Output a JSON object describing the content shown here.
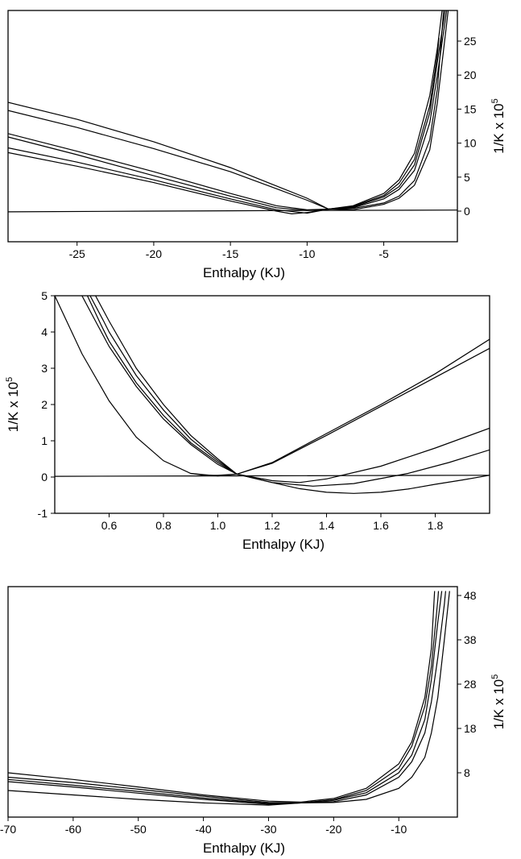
{
  "chart_data": [
    {
      "type": "line",
      "xlabel": "Enthalpy (KJ)",
      "ylabel": "1/K x 10",
      "ylabel_exponent": "5",
      "xlim": [
        -29.5,
        -0.2
      ],
      "ylim": [
        -4.5,
        29.5
      ],
      "xticks": [
        -25,
        -20,
        -15,
        -10,
        -5
      ],
      "yticks": [
        0,
        5,
        10,
        15,
        20,
        25
      ],
      "yaxis_side": "right",
      "series": [
        {
          "x": [
            -29.5,
            -25,
            -20,
            -15,
            -12,
            -10,
            -8.6,
            -7,
            -5,
            -4,
            -3,
            -2,
            -1.5,
            -1.2
          ],
          "y": [
            16,
            13.5,
            10.2,
            6.4,
            3.7,
            1.9,
            0.3,
            0.8,
            2.6,
            4.6,
            8.5,
            17,
            24,
            29.5
          ]
        },
        {
          "x": [
            -29.5,
            -25,
            -20,
            -15,
            -12,
            -10,
            -8.6,
            -7,
            -5,
            -4,
            -3,
            -2,
            -1.5,
            -1.4
          ],
          "y": [
            14.8,
            12.3,
            9.2,
            5.8,
            3.3,
            1.6,
            0.3,
            0.7,
            2.3,
            4.1,
            7.6,
            15.5,
            23,
            25.5
          ]
        },
        {
          "x": [
            -29.5,
            -25,
            -20,
            -15,
            -12,
            -10,
            -8.6,
            -7,
            -5,
            -4,
            -3,
            -2,
            -1.5,
            -1.0
          ],
          "y": [
            11.4,
            8.8,
            5.8,
            2.6,
            0.8,
            0.2,
            0.3,
            0.6,
            2.1,
            3.6,
            6.8,
            14.5,
            22,
            29.5
          ]
        },
        {
          "x": [
            -29.5,
            -25,
            -20,
            -15,
            -12,
            -10,
            -8.6,
            -7,
            -5,
            -4,
            -3,
            -2,
            -1.5,
            -0.9
          ],
          "y": [
            10.9,
            8.3,
            5.2,
            2.2,
            0.5,
            0.1,
            0.3,
            0.5,
            1.8,
            3.2,
            6.0,
            13.0,
            20,
            29.5
          ]
        },
        {
          "x": [
            -29.5,
            -25,
            -20,
            -15,
            -12,
            -10,
            -8.6,
            -7,
            -5,
            -4,
            -3,
            -2,
            -1.5,
            -1.1
          ],
          "y": [
            9.3,
            7.2,
            4.6,
            1.8,
            0.2,
            -0.3,
            0.3,
            0.4,
            1.2,
            2.2,
            4.5,
            10.5,
            18,
            29.5
          ]
        },
        {
          "x": [
            -29.5,
            -25,
            -20,
            -15,
            -12,
            -11,
            -10,
            -8.6,
            -7,
            -5,
            -4,
            -3,
            -2,
            -1.5,
            -0.8
          ],
          "y": [
            8.6,
            6.6,
            4.2,
            1.5,
            0.0,
            -0.4,
            -0.2,
            0.3,
            0.2,
            1.0,
            1.9,
            3.8,
            9.0,
            16,
            29.5
          ]
        },
        {
          "x": [
            -29.5,
            -20,
            -10,
            -0.2
          ],
          "y": [
            -0.1,
            0.0,
            0.1,
            0.15
          ]
        }
      ]
    },
    {
      "type": "line",
      "xlabel": "Enthalpy (KJ)",
      "ylabel": "1/K x 10",
      "ylabel_exponent": "5",
      "xlim": [
        0.4,
        2.0
      ],
      "ylim": [
        -1,
        5
      ],
      "xticks": [
        0.6,
        0.8,
        1.0,
        1.2,
        1.4,
        1.6,
        1.8
      ],
      "xtick_labels": [
        "0.6",
        "0.8",
        "1.0",
        "1.2",
        "1.4",
        "1.6",
        "1.8"
      ],
      "yticks": [
        -1,
        0,
        1,
        2,
        3,
        4,
        5
      ],
      "yaxis_side": "left",
      "series": [
        {
          "x": [
            0.4,
            0.45,
            0.5,
            0.6,
            0.7,
            0.8,
            0.9,
            1.0,
            1.07
          ],
          "y": [
            5.0,
            4.2,
            3.4,
            2.1,
            1.1,
            0.45,
            0.1,
            0.03,
            0.08
          ]
        },
        {
          "x": [
            0.5,
            0.55,
            0.6,
            0.7,
            0.8,
            0.9,
            1.0,
            1.07,
            1.2,
            1.4,
            1.6,
            1.8,
            2.0
          ],
          "y": [
            5.0,
            4.3,
            3.6,
            2.5,
            1.6,
            0.9,
            0.35,
            0.08,
            0.4,
            1.2,
            2.0,
            2.85,
            3.8
          ]
        },
        {
          "x": [
            0.52,
            0.57,
            0.6,
            0.7,
            0.8,
            0.9,
            1.0,
            1.07,
            1.2,
            1.4,
            1.6,
            1.8,
            2.0
          ],
          "y": [
            5.0,
            4.2,
            3.75,
            2.6,
            1.7,
            0.95,
            0.4,
            0.08,
            0.38,
            1.15,
            1.95,
            2.75,
            3.55
          ]
        },
        {
          "x": [
            0.53,
            0.58,
            0.6,
            0.7,
            0.8,
            0.9,
            1.0,
            1.07,
            1.2,
            1.3,
            1.4,
            1.6,
            1.8,
            2.0
          ],
          "y": [
            5.0,
            4.3,
            4.0,
            2.8,
            1.85,
            1.05,
            0.45,
            0.08,
            -0.1,
            -0.15,
            -0.05,
            0.3,
            0.8,
            1.35
          ]
        },
        {
          "x": [
            0.55,
            0.6,
            0.7,
            0.8,
            0.9,
            1.0,
            1.07,
            1.2,
            1.35,
            1.5,
            1.7,
            1.85,
            2.0
          ],
          "y": [
            5.0,
            4.3,
            3.0,
            2.0,
            1.15,
            0.5,
            0.08,
            -0.15,
            -0.25,
            -0.18,
            0.1,
            0.4,
            0.75
          ]
        },
        {
          "x": [
            0.9,
            0.95,
            1.0,
            1.07,
            1.2,
            1.3,
            1.4,
            1.5,
            1.6,
            1.7,
            1.8,
            1.9,
            2.0
          ],
          "y": [
            0.1,
            0.05,
            0.05,
            0.08,
            -0.15,
            -0.32,
            -0.42,
            -0.45,
            -0.42,
            -0.33,
            -0.2,
            -0.08,
            0.05
          ]
        },
        {
          "x": [
            0.4,
            1.0,
            1.5,
            2.0
          ],
          "y": [
            0.02,
            0.03,
            0.04,
            0.05
          ]
        }
      ]
    },
    {
      "type": "line",
      "xlabel": "Enthalpy (KJ)",
      "ylabel": "1/K x 10",
      "ylabel_exponent": "5",
      "xlim": [
        -70,
        -1
      ],
      "ylim": [
        -2,
        50
      ],
      "xticks": [
        -70,
        -60,
        -50,
        -40,
        -30,
        -20,
        -10
      ],
      "yticks": [
        8,
        18,
        28,
        38,
        48
      ],
      "yaxis_side": "right",
      "series": [
        {
          "x": [
            -70,
            -60,
            -50,
            -40,
            -30,
            -25,
            -20,
            -15,
            -10,
            -8,
            -6,
            -5,
            -4.5
          ],
          "y": [
            8.0,
            6.5,
            4.8,
            3.0,
            1.6,
            1.4,
            2.2,
            4.5,
            10,
            15,
            25,
            36,
            49
          ]
        },
        {
          "x": [
            -70,
            -60,
            -50,
            -40,
            -30,
            -25,
            -20,
            -15,
            -10,
            -8,
            -6,
            -5,
            -4,
            -3.9
          ],
          "y": [
            7.0,
            5.8,
            4.3,
            2.7,
            1.3,
            1.2,
            1.9,
            4.0,
            9.0,
            14,
            23,
            32,
            47,
            49
          ]
        },
        {
          "x": [
            -70,
            -60,
            -50,
            -40,
            -30,
            -25,
            -20,
            -15,
            -10,
            -8,
            -6,
            -5,
            -4,
            -3.4
          ],
          "y": [
            6.5,
            5.2,
            3.8,
            2.3,
            1.1,
            1.2,
            1.8,
            3.5,
            8.0,
            12,
            20,
            29,
            42,
            49
          ]
        },
        {
          "x": [
            -70,
            -60,
            -50,
            -40,
            -30,
            -25,
            -20,
            -15,
            -10,
            -8,
            -6,
            -5,
            -4,
            -3,
            -2.8
          ],
          "y": [
            6.0,
            4.8,
            3.4,
            2.0,
            0.9,
            1.2,
            1.5,
            3.0,
            7.0,
            10.5,
            17,
            24,
            34,
            46,
            49
          ]
        },
        {
          "x": [
            -70,
            -60,
            -50,
            -40,
            -30,
            -25,
            -20,
            -15,
            -10,
            -8,
            -6,
            -5,
            -4,
            -3,
            -2.2
          ],
          "y": [
            4.0,
            3.0,
            2.0,
            1.2,
            0.7,
            1.2,
            1.3,
            2.0,
            4.5,
            7.0,
            11.5,
            17,
            25,
            38,
            49
          ]
        }
      ]
    }
  ]
}
